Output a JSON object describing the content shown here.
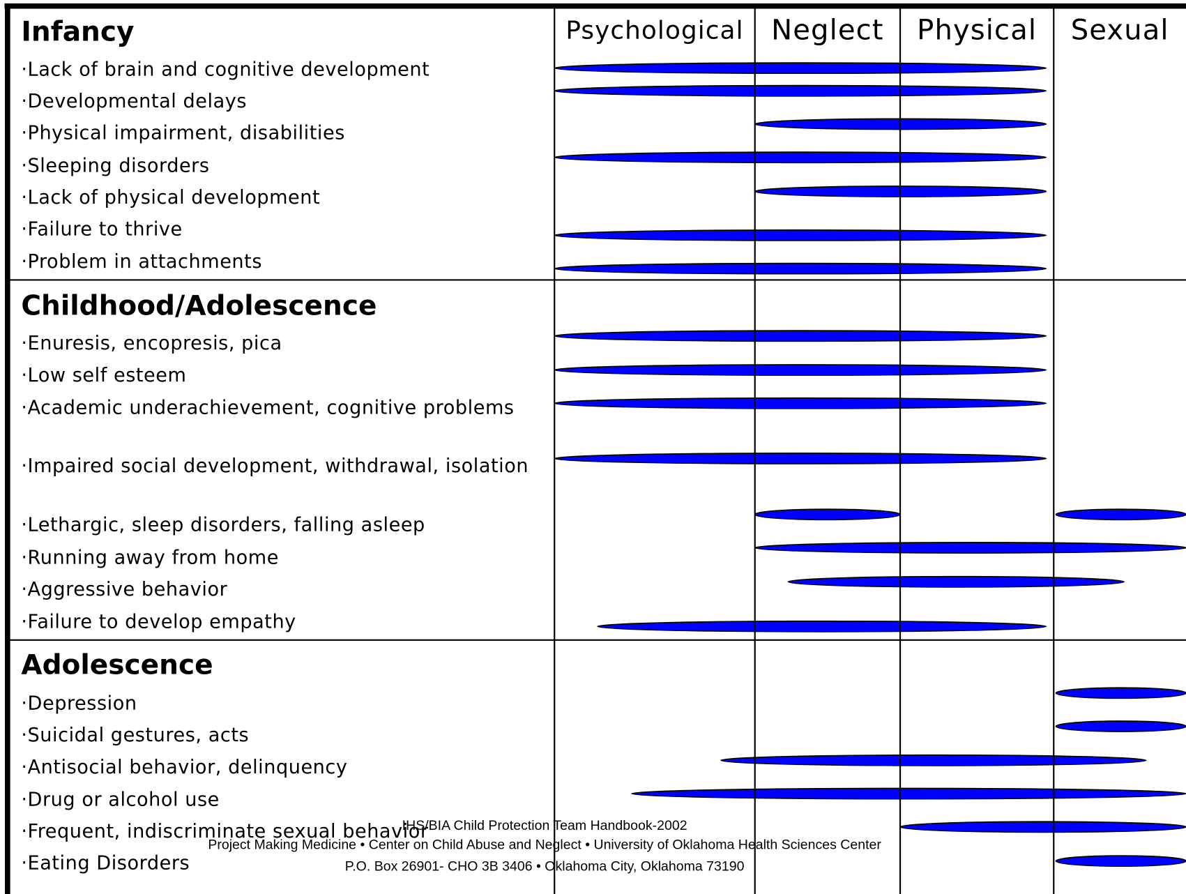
{
  "header": {
    "columns": [
      "Psychological",
      "Neglect",
      "Physical",
      "Sexual"
    ]
  },
  "sections": [
    {
      "title": "Infancy",
      "items": [
        "·Lack of brain and cognitive  development",
        "·Developmental delays",
        "·Physical impairment, disabilities",
        "·Sleeping disorders",
        "·Lack of physical development",
        "·Failure to thrive",
        "·Problem in attachments"
      ]
    },
    {
      "title": "Childhood/Adolescence",
      "items": [
        "·Enuresis, encopresis, pica",
        "·Low self esteem",
        "·Academic underachievement, cognitive problems",
        "·Impaired social development, withdrawal, isolation",
        "·Lethargic, sleep disorders, falling asleep",
        "·Running away from home",
        "·Aggressive behavior",
        "·Failure to develop empathy"
      ]
    },
    {
      "title": "Adolescence",
      "items": [
        "·Depression",
        "·Suicidal gestures, acts",
        "·Antisocial behavior, delinquency",
        "·Drug or alcohol use",
        "·Frequent, indiscriminate sexual behavior",
        "·Eating Disorders"
      ]
    }
  ],
  "footer": {
    "lines": [
      "IHS/BIA Child Protection Team Handbook-2002",
      "Project Making Medicine • Center on Child Abuse and Neglect • University of Oklahoma Health Sciences Center",
      "P.O. Box 26901- CHO 3B 3406 • Oklahoma City, Oklahoma 73190"
    ]
  }
}
